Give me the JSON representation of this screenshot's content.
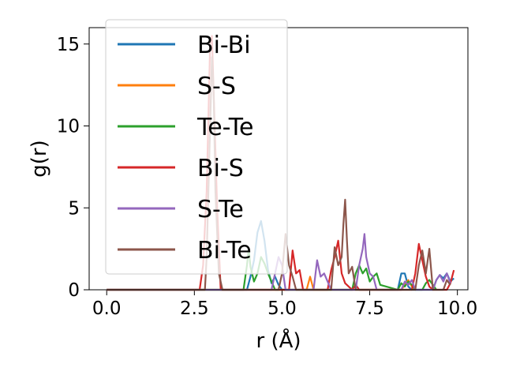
{
  "chart_data": {
    "type": "line",
    "title": "",
    "xlabel": "r (Å)",
    "ylabel": "g(r)",
    "xlim": [
      -0.5,
      10.3
    ],
    "ylim": [
      0,
      16
    ],
    "xticks": [
      0.0,
      2.5,
      5.0,
      7.5,
      10.0
    ],
    "xtick_labels": [
      "0.0",
      "2.5",
      "5.0",
      "7.5",
      "10.0"
    ],
    "yticks": [
      0,
      5,
      10,
      15
    ],
    "ytick_labels": [
      "0",
      "5",
      "10",
      "15"
    ],
    "grid": false,
    "legend_position": "upper-left",
    "series": [
      {
        "name": "Bi-Bi",
        "color": "#1f77b4",
        "x": [
          0,
          4.0,
          4.1,
          4.2,
          4.3,
          4.4,
          4.5,
          4.6,
          4.7,
          4.8,
          4.9,
          5.0,
          8.3,
          8.4,
          8.5,
          8.6,
          8.7,
          9.3,
          9.4,
          9.5,
          9.6,
          9.7,
          9.8,
          9.9
        ],
        "y": [
          0,
          0,
          0.8,
          1.8,
          3.5,
          4.2,
          3.0,
          1.2,
          0.4,
          0.8,
          0.3,
          0,
          0,
          1.0,
          1.0,
          0.2,
          0,
          0,
          0.6,
          0.9,
          0.7,
          1.0,
          0.5,
          0.7
        ]
      },
      {
        "name": "S-S",
        "color": "#ff7f0e",
        "x": [
          0,
          5.7,
          5.8,
          5.9,
          6.0,
          8.4,
          8.5,
          8.6,
          8.7,
          8.8
        ],
        "y": [
          0,
          0,
          0.8,
          0,
          0,
          0,
          0.3,
          0.6,
          0.2,
          0
        ]
      },
      {
        "name": "Te-Te",
        "color": "#2ca02c",
        "x": [
          0,
          3.9,
          4.0,
          4.05,
          4.1,
          4.2,
          4.3,
          4.4,
          4.5,
          4.6,
          4.7,
          4.8,
          7.0,
          7.1,
          7.2,
          7.3,
          7.4,
          7.5,
          7.6,
          7.7,
          7.8,
          8.3,
          8.4,
          8.5,
          8.6,
          8.7,
          8.8,
          9.0,
          9.1,
          9.2,
          9.3,
          9.4
        ],
        "y": [
          0,
          0,
          1.5,
          2.5,
          1.4,
          0.5,
          1.0,
          2.0,
          1.6,
          1.0,
          0.5,
          0,
          0,
          1.0,
          1.5,
          1.0,
          1.3,
          0.5,
          0.8,
          1.0,
          0.3,
          0,
          0.4,
          0.2,
          0.5,
          0.3,
          0,
          0,
          0.4,
          0.6,
          0.3,
          0
        ]
      },
      {
        "name": "Bi-S",
        "color": "#d62728",
        "x": [
          0,
          2.65,
          2.75,
          2.85,
          2.95,
          3.0,
          3.05,
          3.15,
          3.25,
          5.2,
          5.3,
          5.4,
          5.5,
          5.6,
          6.3,
          6.4,
          6.5,
          6.6,
          6.7,
          6.8,
          6.9,
          7.0,
          7.1,
          7.2,
          8.7,
          8.8,
          8.9,
          9.0,
          9.1,
          9.2,
          9.3,
          9.7,
          9.8,
          9.9
        ],
        "y": [
          0,
          0,
          1.5,
          6.0,
          15.0,
          15.5,
          12.0,
          5.0,
          0,
          0,
          2.4,
          1.0,
          1.2,
          0,
          0,
          1.2,
          2.0,
          3.0,
          1.0,
          0.4,
          0.2,
          0,
          0.3,
          0,
          0,
          1.0,
          2.8,
          1.8,
          0.8,
          0.2,
          0,
          0,
          0.4,
          1.2
        ]
      },
      {
        "name": "S-Te",
        "color": "#9467bd",
        "x": [
          0,
          4.7,
          4.8,
          4.9,
          5.0,
          5.1,
          5.9,
          6.0,
          6.1,
          6.2,
          6.3,
          6.4,
          7.1,
          7.2,
          7.3,
          7.35,
          7.4,
          7.5,
          7.6,
          7.7,
          8.4,
          8.5,
          8.6,
          8.7,
          8.8,
          9.3,
          9.4,
          9.5,
          9.6,
          9.7,
          9.8
        ],
        "y": [
          0,
          0,
          1.0,
          2.0,
          1.5,
          0,
          0,
          1.8,
          0.8,
          1.0,
          0.5,
          0,
          0,
          1.5,
          2.5,
          3.4,
          2.0,
          1.0,
          0.8,
          0,
          0,
          0.5,
          0.3,
          0.6,
          0,
          0,
          0.6,
          0.9,
          0.5,
          1.0,
          0.4
        ]
      },
      {
        "name": "Bi-Te",
        "color": "#8c564b",
        "x": [
          0,
          2.8,
          2.85,
          2.95,
          3.0,
          3.05,
          3.1,
          3.2,
          3.3,
          4.9,
          5.0,
          5.1,
          5.2,
          5.3,
          5.4,
          6.4,
          6.5,
          6.6,
          6.7,
          6.75,
          6.8,
          6.85,
          6.9,
          7.0,
          7.1,
          8.8,
          8.9,
          9.0,
          9.1,
          9.2,
          9.3,
          9.6,
          9.7,
          9.8
        ],
        "y": [
          0,
          0,
          2.0,
          10.0,
          14.2,
          12.0,
          6.0,
          1.0,
          0,
          0,
          1.0,
          3.4,
          1.5,
          0.8,
          0,
          0,
          2.6,
          1.5,
          2.0,
          4.0,
          5.5,
          3.0,
          1.0,
          1.4,
          0,
          0,
          1.5,
          2.4,
          1.0,
          2.5,
          0,
          0,
          0.6,
          0.3
        ]
      }
    ]
  }
}
